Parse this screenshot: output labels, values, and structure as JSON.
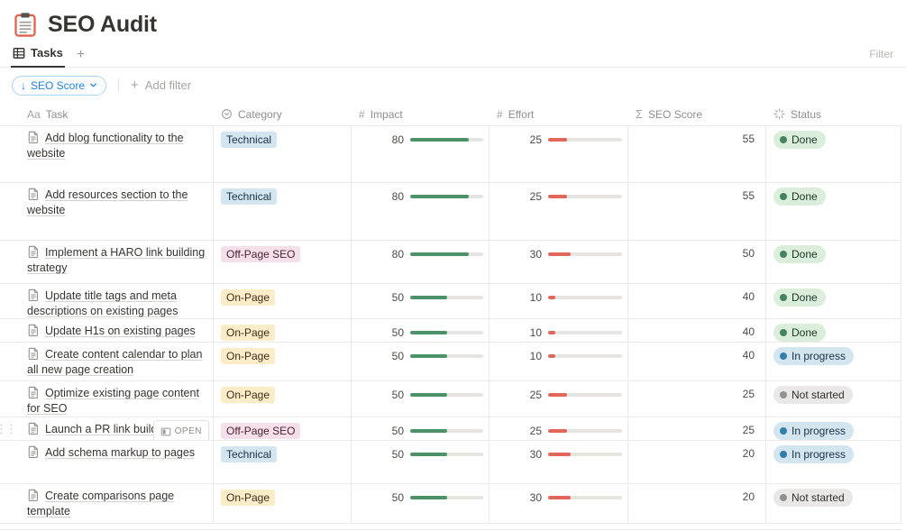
{
  "page": {
    "title": "SEO Audit",
    "icon": "clipboard"
  },
  "view_bar": {
    "tabs": [
      {
        "label": "Tasks",
        "active": true
      }
    ],
    "new_tab_label": "+",
    "filter_label": "Filter"
  },
  "toolbar": {
    "sort_pill": {
      "arrow": "↓",
      "label": "SEO Score"
    },
    "add_filter": {
      "plus": "+",
      "label": "Add filter"
    }
  },
  "table": {
    "columns": [
      {
        "key": "task",
        "label": "Task",
        "icon": "text-property-icon",
        "glyph": "Aa"
      },
      {
        "key": "category",
        "label": "Category",
        "icon": "select-property-icon",
        "glyph": ""
      },
      {
        "key": "impact",
        "label": "Impact",
        "icon": "number-property-icon",
        "glyph": "#"
      },
      {
        "key": "effort",
        "label": "Effort",
        "icon": "number-property-icon",
        "glyph": "#"
      },
      {
        "key": "seo_score",
        "label": "SEO Score",
        "icon": "formula-property-icon",
        "glyph": "Σ"
      },
      {
        "key": "status",
        "label": "Status",
        "icon": "status-property-icon",
        "glyph": ""
      }
    ],
    "open_button_label": "OPEN",
    "bar_max": 100,
    "rows": [
      {
        "task": "Add blog functionality to the website",
        "category": "Technical",
        "impact": 80,
        "effort": 25,
        "seo_score": 55,
        "status": "Done"
      },
      {
        "task": "Add resources section to the website",
        "category": "Technical",
        "impact": 80,
        "effort": 25,
        "seo_score": 55,
        "status": "Done"
      },
      {
        "task": "Implement a HARO link building strategy",
        "category": "Off-Page SEO",
        "impact": 80,
        "effort": 30,
        "seo_score": 50,
        "status": "Done"
      },
      {
        "task": "Update title tags and meta descriptions on existing pages",
        "category": "On-Page",
        "impact": 50,
        "effort": 10,
        "seo_score": 40,
        "status": "Done"
      },
      {
        "task": "Update H1s on existing pages",
        "category": "On-Page",
        "impact": 50,
        "effort": 10,
        "seo_score": 40,
        "status": "Done"
      },
      {
        "task": "Create content calendar to plan all new page creation",
        "category": "On-Page",
        "impact": 50,
        "effort": 10,
        "seo_score": 40,
        "status": "In progress"
      },
      {
        "task": "Optimize existing page content for SEO",
        "category": "On-Page",
        "impact": 50,
        "effort": 25,
        "seo_score": 25,
        "status": "Not started"
      },
      {
        "task": "Launch a PR link building ca",
        "category": "Off-Page SEO",
        "impact": 50,
        "effort": 25,
        "seo_score": 25,
        "status": "In progress",
        "open_button": true
      },
      {
        "task": "Add schema markup to pages",
        "category": "Technical",
        "impact": 50,
        "effort": 30,
        "seo_score": 20,
        "status": "In progress"
      },
      {
        "task": "Create comparisons page template",
        "category": "On-Page",
        "impact": 50,
        "effort": 30,
        "seo_score": 20,
        "status": "Not started"
      }
    ]
  },
  "styles": {
    "category": {
      "Technical": {
        "bg": "#d3e5ef",
        "text": "#183347"
      },
      "Off-Page SEO": {
        "bg": "#f5e0e9",
        "text": "#4c2337"
      },
      "On-Page": {
        "bg": "#fdecc8",
        "text": "#402c1b"
      }
    },
    "status": {
      "Done": {
        "bg": "#dbeddb",
        "dot": "#448361",
        "text": "#1c3829"
      },
      "In progress": {
        "bg": "#d3e5ef",
        "dot": "#337ea9",
        "text": "#183347"
      },
      "Not started": {
        "bg": "#e9e8e6",
        "dot": "#91918e",
        "text": "#32302c"
      }
    },
    "impact_bar": "#4d9168",
    "effort_bar": "#e1675a",
    "bar_track": "#e6e5e2",
    "accent_blue": "#2383e2"
  }
}
